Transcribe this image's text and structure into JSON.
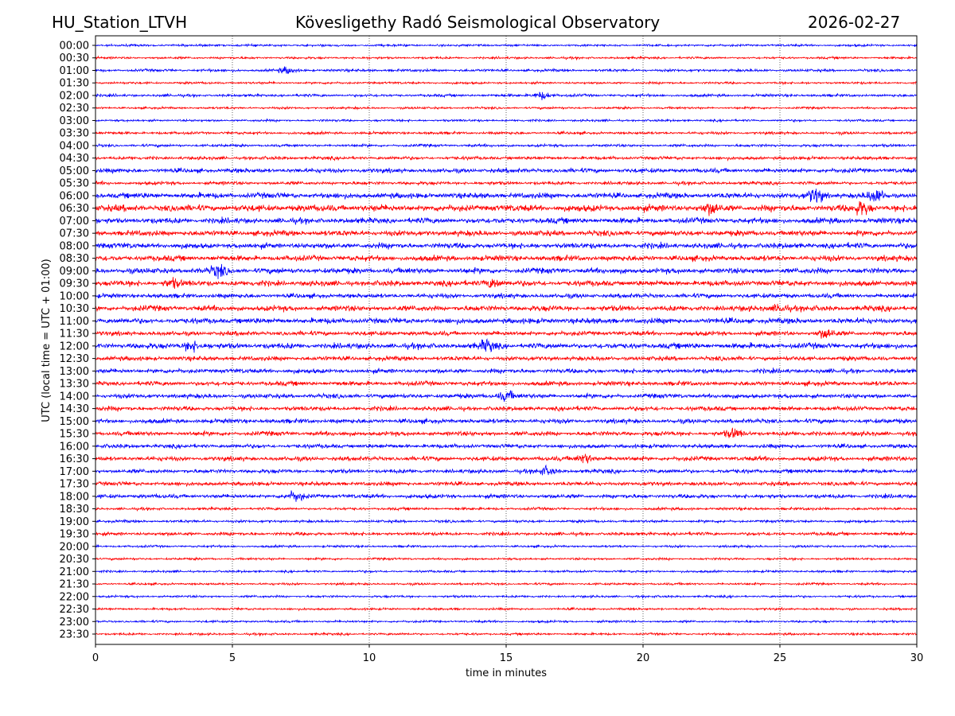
{
  "header": {
    "station": "HU_Station_LTVH",
    "title": "Kövesligethy Radó Seismological Observatory",
    "date": "2026-02-27"
  },
  "chart_data": {
    "type": "line",
    "title": "Kövesligethy Radó Seismological Observatory",
    "xlabel": "time in minutes",
    "ylabel": "UTC (local time = UTC + 01:00)",
    "xlim": [
      0,
      30
    ],
    "xticks": [
      "0",
      "5",
      "10",
      "15",
      "20",
      "25",
      "30"
    ],
    "grid": "vertical dotted at x ticks",
    "colors": [
      "#0000ff",
      "#ff0000"
    ],
    "traces": [
      "00:00",
      "00:30",
      "01:00",
      "01:30",
      "02:00",
      "02:30",
      "03:00",
      "03:30",
      "04:00",
      "04:30",
      "05:00",
      "05:30",
      "06:00",
      "06:30",
      "07:00",
      "07:30",
      "08:00",
      "08:30",
      "09:00",
      "09:30",
      "10:00",
      "10:30",
      "11:00",
      "11:30",
      "12:00",
      "12:30",
      "13:00",
      "13:30",
      "14:00",
      "14:30",
      "15:00",
      "15:30",
      "16:00",
      "16:30",
      "17:00",
      "17:30",
      "18:00",
      "18:30",
      "19:00",
      "19:30",
      "20:00",
      "20:30",
      "21:00",
      "21:30",
      "22:00",
      "22:30",
      "23:00",
      "23:30"
    ],
    "noise_level": [
      1,
      1,
      1.2,
      1,
      1.2,
      1,
      1,
      1.2,
      1.2,
      1.5,
      2,
      1.5,
      2.5,
      3,
      2.5,
      2.5,
      2.5,
      2.5,
      2.5,
      2.5,
      2,
      2.5,
      2.5,
      2,
      2.5,
      2,
      2,
      2,
      2,
      2,
      2,
      2,
      1.8,
      2,
      1.8,
      1.8,
      1.8,
      1.2,
      1.2,
      1.5,
      1,
      1,
      1,
      1,
      1,
      1,
      1,
      1
    ],
    "events": [
      {
        "trace": "01:00",
        "minute": 7,
        "amp": 3
      },
      {
        "trace": "02:00",
        "minute": 16.3,
        "amp": 4
      },
      {
        "trace": "06:00",
        "minute": 26.3,
        "amp": 7
      },
      {
        "trace": "06:00",
        "minute": 28.5,
        "amp": 6
      },
      {
        "trace": "06:30",
        "minute": 28,
        "amp": 6
      },
      {
        "trace": "06:30",
        "minute": 22.5,
        "amp": 5
      },
      {
        "trace": "09:00",
        "minute": 4.5,
        "amp": 5
      },
      {
        "trace": "09:30",
        "minute": 14.5,
        "amp": 5
      },
      {
        "trace": "09:30",
        "minute": 2.8,
        "amp": 4
      },
      {
        "trace": "10:30",
        "minute": 25,
        "amp": 4
      },
      {
        "trace": "11:30",
        "minute": 26.7,
        "amp": 5
      },
      {
        "trace": "12:00",
        "minute": 3.5,
        "amp": 5
      },
      {
        "trace": "12:00",
        "minute": 14.3,
        "amp": 5
      },
      {
        "trace": "14:00",
        "minute": 15,
        "amp": 5
      },
      {
        "trace": "15:30",
        "minute": 23.3,
        "amp": 4
      },
      {
        "trace": "16:30",
        "minute": 17.9,
        "amp": 5
      },
      {
        "trace": "17:00",
        "minute": 16.5,
        "amp": 4
      },
      {
        "trace": "18:00",
        "minute": 7.3,
        "amp": 5
      }
    ]
  }
}
